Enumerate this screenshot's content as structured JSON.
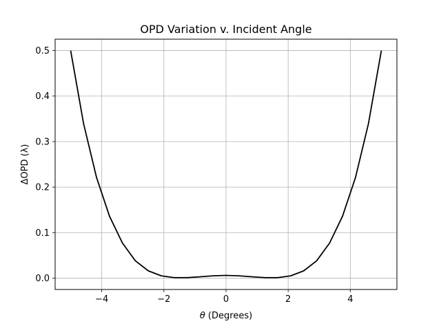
{
  "chart_data": {
    "type": "line",
    "title": "OPD Variation v. Incident Angle",
    "xlabel_symbol": "θ",
    "xlabel_text": " (Degrees)",
    "ylabel": "ΔOPD (λ)",
    "xlim": [
      -5.5,
      5.5
    ],
    "ylim": [
      -0.025,
      0.525
    ],
    "xticks": [
      -4,
      -2,
      0,
      2,
      4
    ],
    "xtick_labels": [
      "−4",
      "−2",
      "0",
      "2",
      "4"
    ],
    "yticks": [
      0.0,
      0.1,
      0.2,
      0.3,
      0.4,
      0.5
    ],
    "ytick_labels": [
      "0.0",
      "0.1",
      "0.2",
      "0.3",
      "0.4",
      "0.5"
    ],
    "grid": true,
    "line_color": "#000000",
    "grid_color": "#b0b0b0",
    "series": [
      {
        "x": [
          -5.0,
          -4.583,
          -4.167,
          -3.75,
          -3.333,
          -2.917,
          -2.5,
          -2.083,
          -1.667,
          -1.25,
          -0.833,
          -0.417,
          0.0,
          0.417,
          0.833,
          1.25,
          1.667,
          2.083,
          2.5,
          2.917,
          3.333,
          3.75,
          4.167,
          4.583,
          5.0
        ],
        "y": [
          0.5,
          0.339,
          0.221,
          0.136,
          0.077,
          0.038,
          0.016,
          0.005,
          0.001,
          0.001,
          0.003,
          0.005,
          0.006,
          0.005,
          0.003,
          0.001,
          0.001,
          0.005,
          0.016,
          0.038,
          0.077,
          0.136,
          0.221,
          0.339,
          0.5
        ]
      }
    ]
  }
}
